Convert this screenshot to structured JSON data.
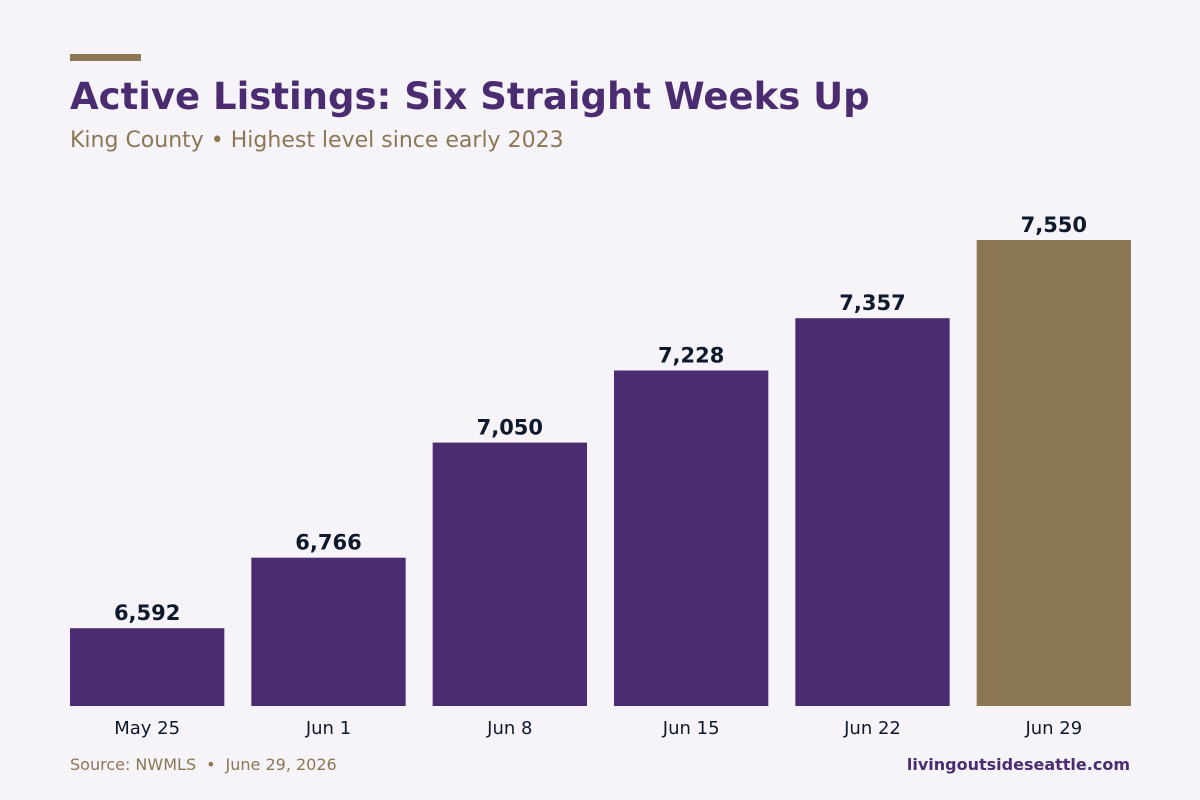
{
  "colors": {
    "background": "#f6f3f9",
    "bar": "#4b2c71",
    "highlight_bar": "#8b7753",
    "title": "#4b2c71",
    "subtitle": "#8b7753",
    "value_label": "#0e1a2b",
    "tick_label": "#0e1a2b",
    "footer_left": "#8b7753",
    "footer_right": "#4b2c71",
    "accent": "#8b7753"
  },
  "footer": {
    "source": "Source: NWMLS",
    "separator": "•",
    "date": "June 29, 2026",
    "website": "livingoutsideseattle.com"
  },
  "chart_data": {
    "type": "bar",
    "title": "Active Listings: Six Straight Weeks Up",
    "subtitle": "King County • Highest level since early 2023",
    "xlabel": "",
    "ylabel": "",
    "categories": [
      "May 25",
      "Jun 1",
      "Jun 8",
      "Jun 15",
      "Jun 22",
      "Jun 29"
    ],
    "values": [
      6592,
      6766,
      7050,
      7228,
      7357,
      7550
    ],
    "value_labels": [
      "6,592",
      "6,766",
      "7,050",
      "7,228",
      "7,357",
      "7,550"
    ],
    "highlight_index": 5,
    "ylim": [
      6400,
      7550
    ],
    "grid": false,
    "legend": "none"
  }
}
